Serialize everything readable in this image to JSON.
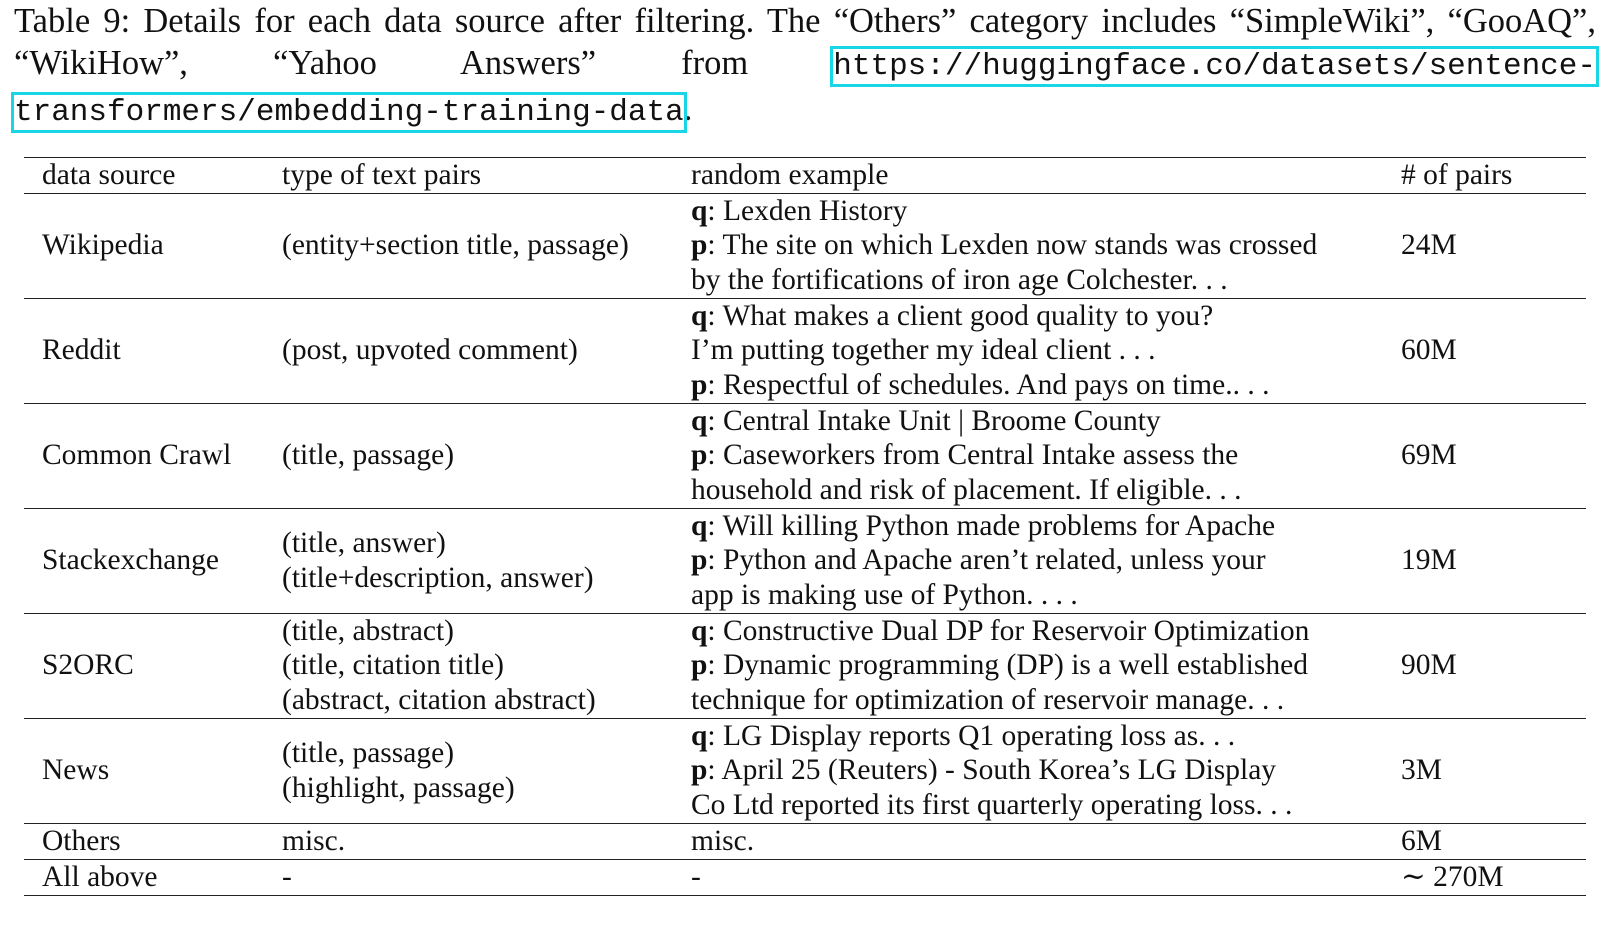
{
  "caption": {
    "prefix": "Table 9:  Details for each data source after filtering.  The “Others” category includes “SimpleWiki”, “GooAQ”, “WikiHow”, “Yahoo Answers” from ",
    "link": "https://huggingface.co/datasets/sentence-transformers/embedding-training-data",
    "suffix": "."
  },
  "table": {
    "headers": {
      "source": "data source",
      "type": "type of text pairs",
      "example": "random example",
      "pairs": "# of pairs"
    },
    "rows": [
      {
        "source": "Wikipedia",
        "types": [
          "(entity+section title, passage)"
        ],
        "example": [
          {
            "prefix": "q",
            "text": ": Lexden History"
          },
          {
            "prefix": "p",
            "text": ": The site on which Lexden now stands was crossed"
          },
          {
            "prefix": "",
            "text": "by the fortifications of iron age Colchester. . ."
          }
        ],
        "pairs": "24M"
      },
      {
        "source": "Reddit",
        "types": [
          "(post, upvoted comment)"
        ],
        "example": [
          {
            "prefix": "q",
            "text": ": What makes a client good quality to you?"
          },
          {
            "prefix": "",
            "text": "I’m putting together my ideal client . . ."
          },
          {
            "prefix": "p",
            "text": ": Respectful of schedules. And pays on time.. . ."
          }
        ],
        "pairs": "60M"
      },
      {
        "source": "Common Crawl",
        "types": [
          "(title, passage)"
        ],
        "example": [
          {
            "prefix": "q",
            "text": ": Central Intake Unit | Broome County"
          },
          {
            "prefix": "p",
            "text": ": Caseworkers from Central Intake assess the"
          },
          {
            "prefix": "",
            "text": "household and risk of placement. If eligible. . ."
          }
        ],
        "pairs": "69M"
      },
      {
        "source": "Stackexchange",
        "types": [
          "(title, answer)",
          "(title+description, answer)"
        ],
        "example": [
          {
            "prefix": "q",
            "text": ": Will killing Python made problems for Apache"
          },
          {
            "prefix": "p",
            "text": ": Python and Apache aren’t related, unless your"
          },
          {
            "prefix": "",
            "text": "app is making use of Python. . . ."
          }
        ],
        "pairs": "19M"
      },
      {
        "source": "S2ORC",
        "types": [
          "(title, abstract)",
          "(title, citation title)",
          "(abstract, citation abstract)"
        ],
        "example": [
          {
            "prefix": "q",
            "text": ": Constructive Dual DP for Reservoir Optimization"
          },
          {
            "prefix": "p",
            "text": ": Dynamic programming (DP) is a well established"
          },
          {
            "prefix": "",
            "text": "technique for optimization of reservoir manage. . ."
          }
        ],
        "pairs": "90M"
      },
      {
        "source": "News",
        "types": [
          "(title, passage)",
          "(highlight, passage)"
        ],
        "example": [
          {
            "prefix": "q",
            "text": ": LG Display reports Q1 operating loss as. . ."
          },
          {
            "prefix": "p",
            "text": ": April 25 (Reuters) - South Korea’s LG Display"
          },
          {
            "prefix": "",
            "text": "Co Ltd reported its first quarterly operating loss. . ."
          }
        ],
        "pairs": "3M"
      },
      {
        "source": "Others",
        "types": [
          "misc."
        ],
        "example": [
          {
            "prefix": "",
            "text": "misc."
          }
        ],
        "pairs": "6M"
      },
      {
        "source": "All above",
        "types": [
          "-"
        ],
        "example": [
          {
            "prefix": "",
            "text": "-"
          }
        ],
        "pairs": "∼ 270M"
      }
    ]
  }
}
